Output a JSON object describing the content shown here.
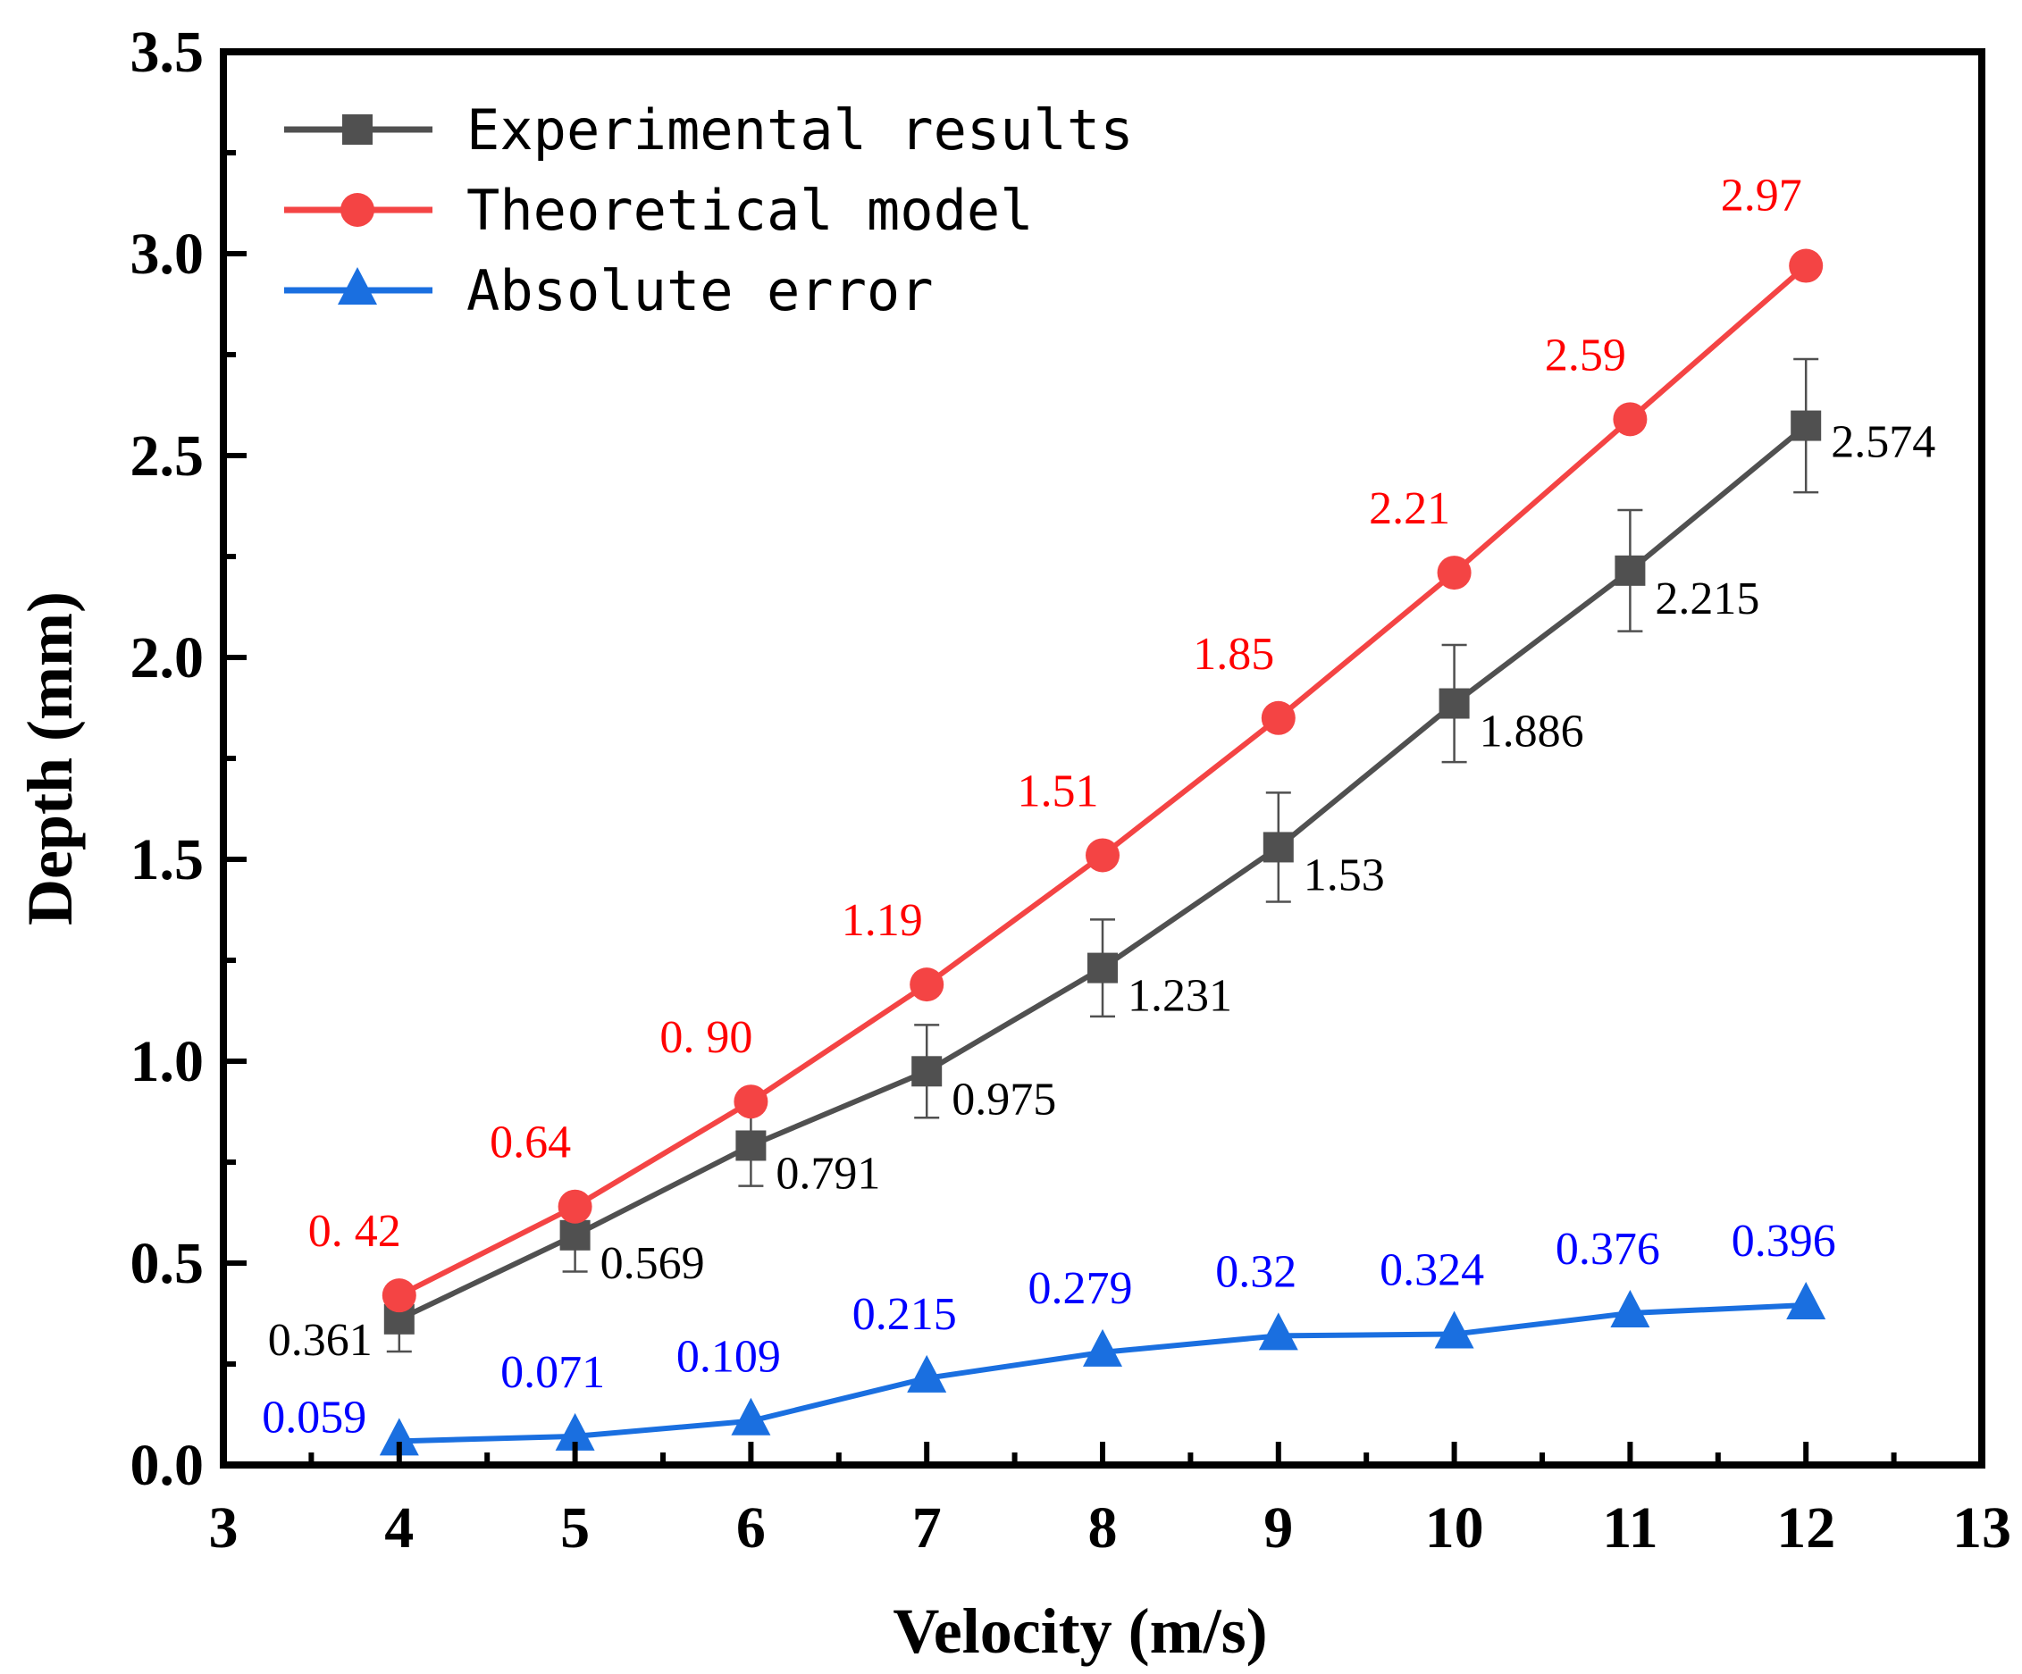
{
  "chart_data": {
    "type": "line",
    "title": "",
    "xlabel": "Velocity (m/s)",
    "ylabel": "Depth (mm)",
    "xlim": [
      3,
      13
    ],
    "ylim": [
      0,
      3.5
    ],
    "xticks": [
      "3",
      "4",
      "5",
      "6",
      "7",
      "8",
      "9",
      "10",
      "11",
      "12",
      "13"
    ],
    "yticks": [
      "0.0",
      "0.5",
      "1.0",
      "1.5",
      "2.0",
      "2.5",
      "3.0",
      "3.5"
    ],
    "grid": false,
    "legend_position": "top-left",
    "x": [
      4,
      5,
      6,
      7,
      8,
      9,
      10,
      11,
      12
    ],
    "series": [
      {
        "name": "Experimental results",
        "color": "#505050",
        "marker": "square",
        "values": [
          0.361,
          0.569,
          0.791,
          0.975,
          1.231,
          1.53,
          1.886,
          2.215,
          2.574
        ],
        "error": [
          0.08,
          0.09,
          0.1,
          0.115,
          0.12,
          0.135,
          0.145,
          0.15,
          0.165
        ],
        "labels": [
          "0.361",
          "0.569",
          "0.791",
          "0.975",
          "1.231",
          "1.53",
          "1.886",
          "2.215",
          "2.574"
        ],
        "label_color": "#000000"
      },
      {
        "name": "Theoretical model",
        "color": "#f44444",
        "marker": "circle",
        "values": [
          0.42,
          0.64,
          0.9,
          1.19,
          1.51,
          1.85,
          2.21,
          2.59,
          2.97
        ],
        "labels": [
          "0. 42",
          "0.64",
          "0. 90",
          "1.19",
          "1.51",
          "1.85",
          "2.21",
          "2.59",
          "2.97"
        ],
        "label_color": "#ff0000"
      },
      {
        "name": "Absolute error",
        "color": "#1a6fe0",
        "marker": "triangle",
        "values": [
          0.059,
          0.071,
          0.109,
          0.215,
          0.279,
          0.32,
          0.324,
          0.376,
          0.396
        ],
        "labels": [
          "0.059",
          "0.071",
          "0.109",
          "0.215",
          "0.279",
          "0.32",
          "0.324",
          "0.376",
          "0.396"
        ],
        "label_color": "#0000ff"
      }
    ]
  }
}
